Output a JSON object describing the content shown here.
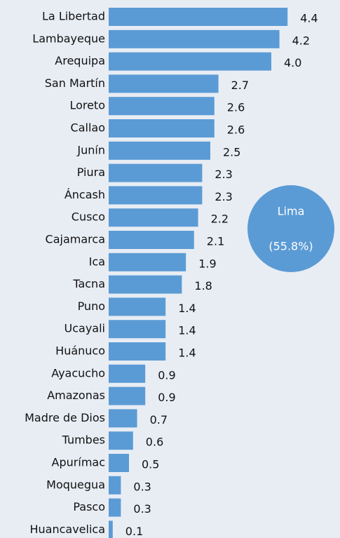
{
  "chart_data": {
    "type": "barh",
    "categories": [
      "La Libertad",
      "Lambayeque",
      "Arequipa",
      "San Martín",
      "Loreto",
      "Callao",
      "Junín",
      "Piura",
      "Áncash",
      "Cusco",
      "Cajamarca",
      "Ica",
      "Tacna",
      "Puno",
      "Ucayali",
      "Huánuco",
      "Ayacucho",
      "Amazonas",
      "Madre de Dios",
      "Tumbes",
      "Apurímac",
      "Moquegua",
      "Pasco",
      "Huancavelica"
    ],
    "values": [
      4.4,
      4.2,
      4.0,
      2.7,
      2.6,
      2.6,
      2.5,
      2.3,
      2.3,
      2.2,
      2.1,
      1.9,
      1.8,
      1.4,
      1.4,
      1.4,
      0.9,
      0.9,
      0.7,
      0.6,
      0.5,
      0.3,
      0.3,
      0.1
    ],
    "value_labels": [
      "4.4",
      "4.2",
      "4.0",
      "2.7",
      "2.6",
      "2.6",
      "2.5",
      "2.3",
      "2.3",
      "2.2",
      "2.1",
      "1.9",
      "1.8",
      "1.4",
      "1.4",
      "1.4",
      "0.9",
      "0.9",
      "0.7",
      "0.6",
      "0.5",
      "0.3",
      "0.3",
      "0.1"
    ],
    "color": "#5b9bd5",
    "annotation": [
      "Lima",
      "(55.8%)"
    ]
  }
}
